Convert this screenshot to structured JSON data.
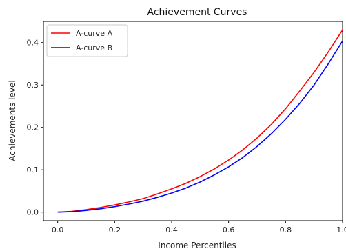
{
  "chart_data": {
    "type": "line",
    "title": "Achievement Curves",
    "xlabel": "Income Percentiles",
    "ylabel": "Achievements level",
    "xlim": [
      -0.05,
      1.0
    ],
    "ylim": [
      -0.02,
      0.45
    ],
    "xticks": [
      0.0,
      0.2,
      0.4,
      0.6,
      0.8,
      1.0
    ],
    "xtick_labels": [
      "0.0",
      "0.2",
      "0.4",
      "0.6",
      "0.8",
      "1.0"
    ],
    "yticks": [
      0.0,
      0.1,
      0.2,
      0.3,
      0.4
    ],
    "ytick_labels": [
      "0.0",
      "0.1",
      "0.2",
      "0.3",
      "0.4"
    ],
    "grid": false,
    "legend": {
      "position": "upper-left"
    },
    "series": [
      {
        "name": "A-curve A",
        "color": "#ff0000",
        "x": [
          0.0,
          0.05,
          0.1,
          0.15,
          0.2,
          0.25,
          0.3,
          0.35,
          0.4,
          0.45,
          0.5,
          0.55,
          0.6,
          0.65,
          0.7,
          0.75,
          0.8,
          0.85,
          0.9,
          0.95,
          1.0
        ],
        "y": [
          0.0,
          0.002,
          0.006,
          0.011,
          0.017,
          0.024,
          0.032,
          0.043,
          0.055,
          0.068,
          0.084,
          0.102,
          0.123,
          0.147,
          0.175,
          0.207,
          0.244,
          0.286,
          0.33,
          0.378,
          0.43
        ]
      },
      {
        "name": "A-curve B",
        "color": "#0000ff",
        "x": [
          0.0,
          0.05,
          0.1,
          0.15,
          0.2,
          0.25,
          0.3,
          0.35,
          0.4,
          0.45,
          0.5,
          0.55,
          0.6,
          0.65,
          0.7,
          0.75,
          0.8,
          0.85,
          0.9,
          0.95,
          1.0
        ],
        "y": [
          0.0,
          0.001,
          0.004,
          0.008,
          0.013,
          0.019,
          0.026,
          0.035,
          0.045,
          0.057,
          0.071,
          0.088,
          0.107,
          0.129,
          0.155,
          0.185,
          0.219,
          0.257,
          0.3,
          0.35,
          0.404
        ]
      }
    ]
  }
}
